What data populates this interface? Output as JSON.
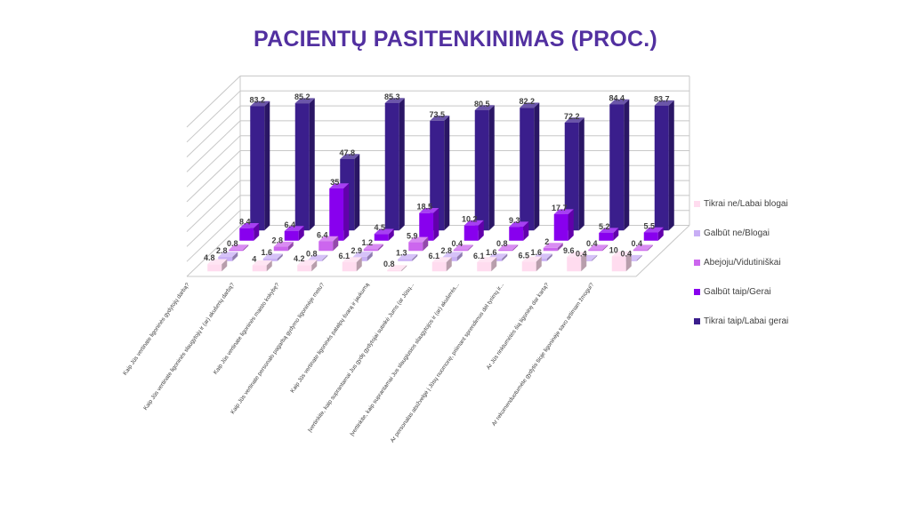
{
  "title": "PACIENTŲ PASITENKINIMAS (PROC.)",
  "chart_data": {
    "type": "bar",
    "title": "PACIENTŲ PASITENKINIMAS (PROC.)",
    "categories": [
      "Kaip Jūs vertinate ligoninės gydytojų darbą?",
      "Kaip Jūs vertinate ligoninės slaugytojų ir (ar) akušerių darbą?",
      "Kaip Jūs vertinate ligoninės maisto kokybę?",
      "Kaip Jūs vertinate personalo pagarbą gydymo ligoninėje metu?",
      "Kaip Jūs vertinate ligoninės patalpų švarą ir jaukumą",
      "Įvertinkite, kaip suprantamai Jus gydę gydytojai suteikė Jums (ar Jūsų...",
      "Įvertinkite, kaip suprantamai Jus slaugiusios slaugytojos ir (ar) akušerės...",
      "Ar personalas atsižvelgė į Jūsų nuomonę, priimant sprendimus dėl tyrimų ir...",
      "Ar Jūs rinktumėtės šią ligoninę dar kartą?",
      "Ar rekomenduotumėte gydytis šioje ligoninėje savo artimam žmogui?"
    ],
    "series": [
      {
        "name": "Tikrai ne/Labai blogai",
        "color": "#ffdcef",
        "values": [
          4.8,
          4,
          4.2,
          6.1,
          0.8,
          6.1,
          6.1,
          6.5,
          9.6,
          10
        ]
      },
      {
        "name": "Galbūt ne/Blogai",
        "color": "#c8aef5",
        "values": [
          2.8,
          1.6,
          0.8,
          2.9,
          1.3,
          2.8,
          1.6,
          1.6,
          0.4,
          0.4
        ]
      },
      {
        "name": "Abejoju/Vidutiniškai",
        "color": "#cc66ee",
        "values": [
          0.8,
          2.8,
          6.4,
          1.2,
          5.9,
          0.4,
          0.8,
          2,
          0.4,
          0.4
        ]
      },
      {
        "name": "Galbūt taip/Gerai",
        "color": "#8800ee",
        "values": [
          8.4,
          6.4,
          35,
          4.5,
          18.5,
          10.2,
          9.3,
          17.7,
          5.2,
          5.5
        ]
      },
      {
        "name": "Tikrai taip/Labai gerai",
        "color": "#3a1e8c",
        "values": [
          83.2,
          85.2,
          47.8,
          85.3,
          73.5,
          80.5,
          82.2,
          72.2,
          84.4,
          83.7
        ]
      }
    ],
    "ylim": [
      0,
      100
    ],
    "legend": "right"
  }
}
